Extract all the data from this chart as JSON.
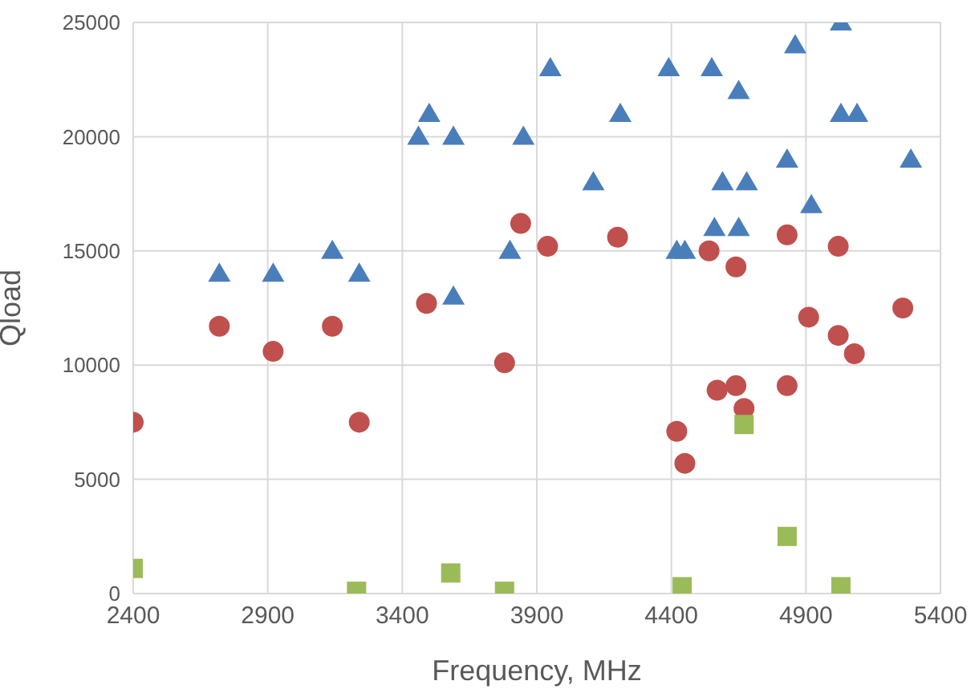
{
  "chart_data": {
    "type": "scatter",
    "xlabel": "Frequency, MHz",
    "ylabel": "Qload",
    "xlim": [
      2400,
      5400
    ],
    "xticks": [
      2400,
      2900,
      3400,
      3900,
      4400,
      4900,
      5400
    ],
    "ylim": [
      0,
      25000
    ],
    "yticks": [
      0,
      5000,
      10000,
      15000,
      20000,
      25000
    ],
    "grid": true,
    "series": [
      {
        "color": "#4a7ebb",
        "marker": "triangle",
        "x": [
          2720,
          2920,
          3140,
          3240,
          3460,
          3500,
          3590,
          3590,
          3800,
          3850,
          3950,
          4110,
          4210,
          4390,
          4420,
          4450,
          4550,
          4560,
          4590,
          4650,
          4650,
          4680,
          4830,
          4860,
          4920,
          5030,
          5030,
          5090,
          5290
        ],
        "values": [
          14000,
          14000,
          15000,
          14000,
          20000,
          21000,
          20000,
          13000,
          15000,
          20000,
          23000,
          18000,
          21000,
          23000,
          15000,
          15000,
          23000,
          16000,
          18000,
          16000,
          22000,
          18000,
          19000,
          24000,
          17000,
          25000,
          21000,
          21000,
          19000
        ]
      },
      {
        "color": "#c0504d",
        "marker": "circle",
        "x": [
          2400,
          2720,
          2920,
          3140,
          3240,
          3490,
          3780,
          3840,
          3940,
          4200,
          4420,
          4450,
          4540,
          4570,
          4640,
          4640,
          4670,
          4830,
          4830,
          4910,
          5020,
          5020,
          5080,
          5260
        ],
        "values": [
          7500,
          11700,
          10600,
          11700,
          7500,
          12700,
          10100,
          16200,
          15200,
          15600,
          7100,
          5700,
          15000,
          8900,
          14300,
          9100,
          8100,
          15700,
          9100,
          12100,
          15200,
          11300,
          10500,
          12500
        ]
      },
      {
        "color": "#9bbb59",
        "marker": "square",
        "x": [
          2400,
          3230,
          3580,
          3780,
          4440,
          4670,
          4830,
          5030
        ],
        "values": [
          1100,
          100,
          900,
          100,
          300,
          7400,
          2500,
          300
        ]
      }
    ]
  }
}
